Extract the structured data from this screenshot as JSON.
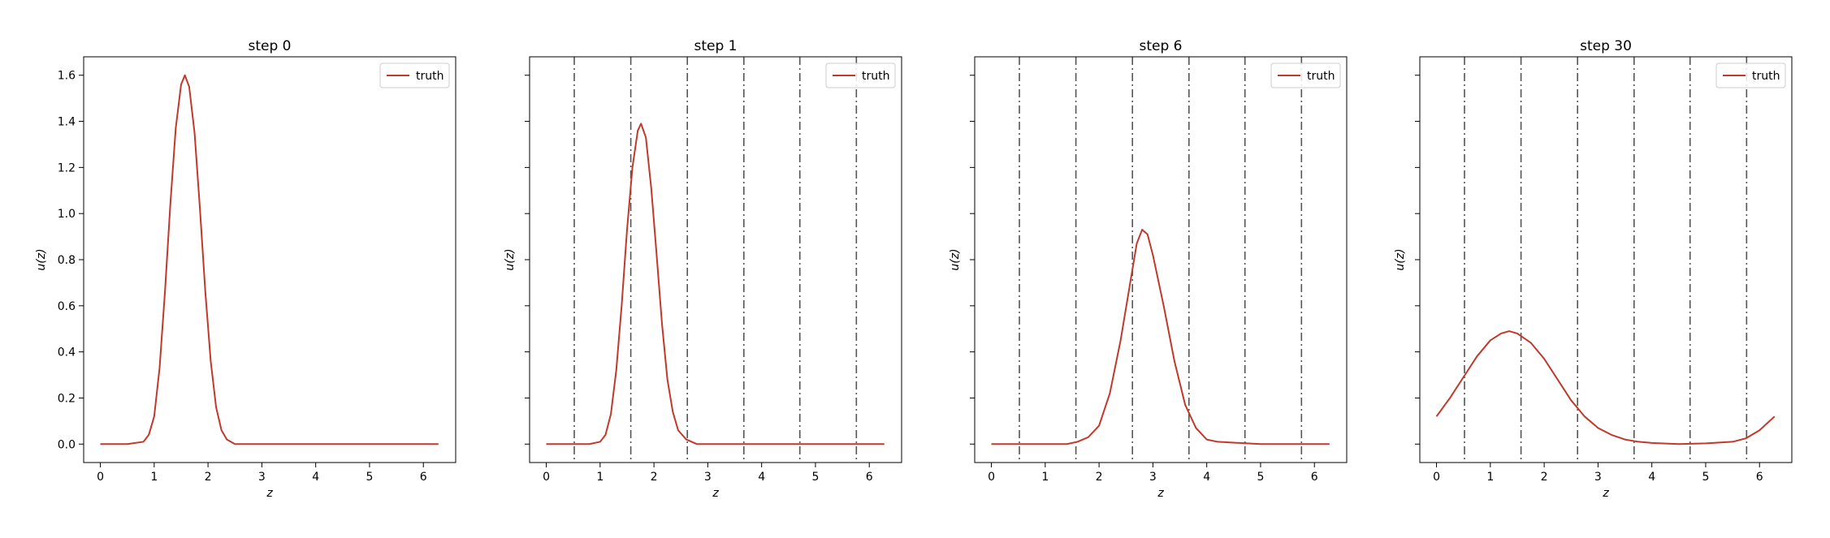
{
  "chart_data": [
    {
      "type": "line",
      "title": "step 0",
      "xlabel": "z",
      "ylabel": "u(z)",
      "xlim": [
        -0.31,
        6.6
      ],
      "ylim": [
        -0.08,
        1.68
      ],
      "xticks": [
        0,
        1,
        2,
        3,
        4,
        5,
        6
      ],
      "xtick_labels": [
        "0",
        "1",
        "2",
        "3",
        "4",
        "5",
        "6"
      ],
      "yticks": [
        0.0,
        0.2,
        0.4,
        0.6,
        0.8,
        1.0,
        1.2,
        1.4,
        1.6
      ],
      "ytick_labels": [
        "0.0",
        "0.2",
        "0.4",
        "0.6",
        "0.8",
        "1.0",
        "1.2",
        "1.4",
        "1.6"
      ],
      "show_ytick_labels": true,
      "show_ylabel": true,
      "vlines": [],
      "legend": "upper right",
      "series": [
        {
          "name": "truth",
          "color": "#c0392b",
          "x": [
            0,
            0.5,
            0.8,
            0.9,
            1.0,
            1.1,
            1.2,
            1.3,
            1.4,
            1.5,
            1.57,
            1.65,
            1.75,
            1.85,
            1.95,
            2.05,
            2.15,
            2.25,
            2.35,
            2.5,
            3.0,
            4.0,
            5.0,
            6.0,
            6.28
          ],
          "y": [
            0.0,
            0.0,
            0.01,
            0.04,
            0.12,
            0.33,
            0.66,
            1.04,
            1.37,
            1.56,
            1.6,
            1.55,
            1.35,
            1.02,
            0.66,
            0.36,
            0.16,
            0.06,
            0.02,
            0.0,
            0.0,
            0.0,
            0.0,
            0.0,
            0.0
          ]
        }
      ]
    },
    {
      "type": "line",
      "title": "step 1",
      "xlabel": "z",
      "ylabel": "u(z)",
      "xlim": [
        -0.31,
        6.6
      ],
      "ylim": [
        -0.08,
        1.68
      ],
      "xticks": [
        0,
        1,
        2,
        3,
        4,
        5,
        6
      ],
      "xtick_labels": [
        "0",
        "1",
        "2",
        "3",
        "4",
        "5",
        "6"
      ],
      "yticks": [
        0.0,
        0.2,
        0.4,
        0.6,
        0.8,
        1.0,
        1.2,
        1.4,
        1.6
      ],
      "ytick_labels": [
        "",
        "",
        "",
        "",
        "",
        "",
        "",
        "",
        ""
      ],
      "show_ytick_labels": false,
      "show_ylabel": true,
      "vlines": [
        0.52,
        1.57,
        2.62,
        3.67,
        4.71,
        5.76
      ],
      "legend": "upper right",
      "series": [
        {
          "name": "truth",
          "color": "#c0392b",
          "x": [
            0,
            0.8,
            1.0,
            1.1,
            1.2,
            1.3,
            1.4,
            1.5,
            1.6,
            1.7,
            1.76,
            1.85,
            1.95,
            2.05,
            2.15,
            2.25,
            2.35,
            2.45,
            2.6,
            2.8,
            3.0,
            4.0,
            5.0,
            6.0,
            6.28
          ],
          "y": [
            0.0,
            0.0,
            0.01,
            0.04,
            0.13,
            0.32,
            0.6,
            0.93,
            1.2,
            1.36,
            1.39,
            1.33,
            1.11,
            0.82,
            0.52,
            0.28,
            0.14,
            0.06,
            0.02,
            0.0,
            0.0,
            0.0,
            0.0,
            0.0,
            0.0
          ]
        }
      ]
    },
    {
      "type": "line",
      "title": "step 6",
      "xlabel": "z",
      "ylabel": "u(z)",
      "xlim": [
        -0.31,
        6.6
      ],
      "ylim": [
        -0.08,
        1.68
      ],
      "xticks": [
        0,
        1,
        2,
        3,
        4,
        5,
        6
      ],
      "xtick_labels": [
        "0",
        "1",
        "2",
        "3",
        "4",
        "5",
        "6"
      ],
      "yticks": [
        0.0,
        0.2,
        0.4,
        0.6,
        0.8,
        1.0,
        1.2,
        1.4,
        1.6
      ],
      "ytick_labels": [
        "",
        "",
        "",
        "",
        "",
        "",
        "",
        "",
        ""
      ],
      "show_ytick_labels": false,
      "show_ylabel": true,
      "vlines": [
        0.52,
        1.57,
        2.62,
        3.67,
        4.71,
        5.76
      ],
      "legend": "upper right",
      "series": [
        {
          "name": "truth",
          "color": "#c0392b",
          "x": [
            0,
            1.4,
            1.6,
            1.8,
            2.0,
            2.2,
            2.4,
            2.6,
            2.7,
            2.8,
            2.9,
            3.0,
            3.2,
            3.4,
            3.6,
            3.8,
            4.0,
            4.2,
            5.0,
            6.0,
            6.28
          ],
          "y": [
            0.0,
            0.0,
            0.01,
            0.03,
            0.08,
            0.22,
            0.45,
            0.73,
            0.87,
            0.93,
            0.91,
            0.82,
            0.6,
            0.36,
            0.17,
            0.07,
            0.02,
            0.01,
            0.0,
            0.0,
            0.0
          ]
        }
      ]
    },
    {
      "type": "line",
      "title": "step 30",
      "xlabel": "z",
      "ylabel": "u(z)",
      "xlim": [
        -0.31,
        6.6
      ],
      "ylim": [
        -0.08,
        1.68
      ],
      "xticks": [
        0,
        1,
        2,
        3,
        4,
        5,
        6
      ],
      "xtick_labels": [
        "0",
        "1",
        "2",
        "3",
        "4",
        "5",
        "6"
      ],
      "yticks": [
        0.0,
        0.2,
        0.4,
        0.6,
        0.8,
        1.0,
        1.2,
        1.4,
        1.6
      ],
      "ytick_labels": [
        "",
        "",
        "",
        "",
        "",
        "",
        "",
        "",
        ""
      ],
      "show_ytick_labels": false,
      "show_ylabel": true,
      "vlines": [
        0.52,
        1.57,
        2.62,
        3.67,
        4.71,
        5.76
      ],
      "legend": "upper right",
      "series": [
        {
          "name": "truth",
          "color": "#c0392b",
          "x": [
            0,
            0.25,
            0.5,
            0.75,
            1.0,
            1.2,
            1.35,
            1.5,
            1.75,
            2.0,
            2.25,
            2.5,
            2.75,
            3.0,
            3.25,
            3.5,
            3.75,
            4.0,
            4.5,
            5.0,
            5.5,
            5.75,
            6.0,
            6.28
          ],
          "y": [
            0.12,
            0.2,
            0.29,
            0.38,
            0.45,
            0.48,
            0.49,
            0.48,
            0.44,
            0.37,
            0.28,
            0.19,
            0.12,
            0.07,
            0.04,
            0.02,
            0.01,
            0.005,
            0.0,
            0.003,
            0.01,
            0.025,
            0.06,
            0.12
          ]
        }
      ]
    }
  ]
}
